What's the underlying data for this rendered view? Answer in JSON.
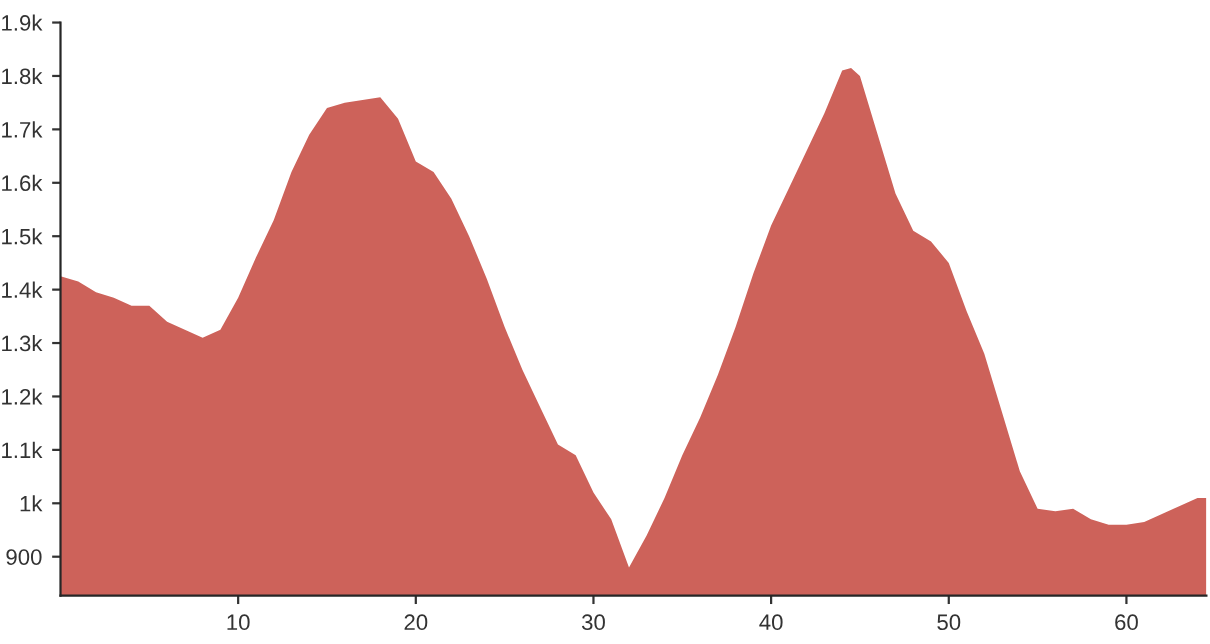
{
  "chart_data": {
    "type": "area",
    "color": "#cd625a",
    "x": [
      0,
      1,
      2,
      3,
      4,
      5,
      6,
      7,
      8,
      9,
      10,
      11,
      12,
      13,
      14,
      15,
      16,
      17,
      18,
      19,
      20,
      21,
      22,
      23,
      24,
      25,
      26,
      27,
      28,
      29,
      30,
      31,
      32,
      33,
      34,
      35,
      36,
      37,
      38,
      39,
      40,
      41,
      42,
      43,
      44,
      44.5,
      45,
      46,
      47,
      48,
      49,
      50,
      51,
      52,
      53,
      54,
      55,
      56,
      57,
      58,
      59,
      60,
      61,
      62,
      63,
      64,
      64.5
    ],
    "values": [
      1425,
      1415,
      1395,
      1385,
      1370,
      1370,
      1340,
      1325,
      1310,
      1325,
      1385,
      1460,
      1530,
      1620,
      1690,
      1740,
      1750,
      1755,
      1760,
      1720,
      1640,
      1620,
      1570,
      1500,
      1420,
      1330,
      1250,
      1180,
      1110,
      1090,
      1020,
      970,
      880,
      940,
      1010,
      1090,
      1160,
      1240,
      1330,
      1430,
      1520,
      1590,
      1660,
      1730,
      1810,
      1815,
      1800,
      1690,
      1580,
      1510,
      1490,
      1450,
      1360,
      1280,
      1170,
      1060,
      990,
      985,
      990,
      970,
      960,
      960,
      965,
      980,
      995,
      1010,
      1010
    ],
    "xlim": [
      0,
      64.5
    ],
    "ylim": [
      827,
      1900
    ],
    "xticks": [
      10,
      20,
      30,
      40,
      50,
      60
    ],
    "yticks": [
      {
        "value": 900,
        "label": "900"
      },
      {
        "value": 1000,
        "label": "1k"
      },
      {
        "value": 1100,
        "label": "1.1k"
      },
      {
        "value": 1200,
        "label": "1.2k"
      },
      {
        "value": 1300,
        "label": "1.3k"
      },
      {
        "value": 1400,
        "label": "1.4k"
      },
      {
        "value": 1500,
        "label": "1.5k"
      },
      {
        "value": 1600,
        "label": "1.6k"
      },
      {
        "value": 1700,
        "label": "1.7k"
      },
      {
        "value": 1800,
        "label": "1.8k"
      },
      {
        "value": 1900,
        "label": "1.9k"
      }
    ],
    "grid": false,
    "legend": false
  }
}
